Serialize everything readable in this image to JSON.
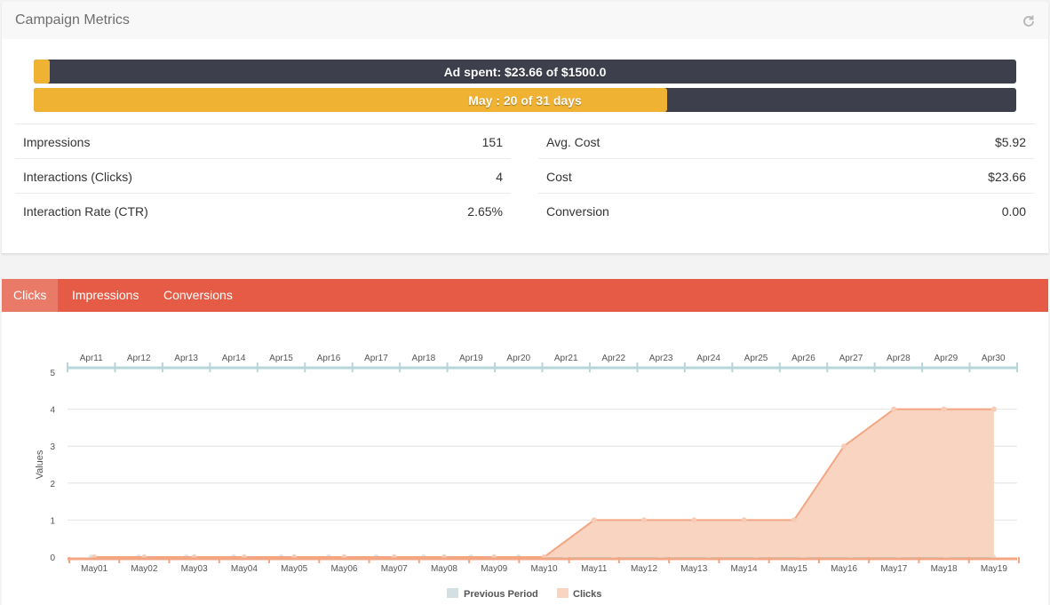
{
  "header": {
    "title": "Campaign Metrics",
    "refresh_icon": "refresh-icon"
  },
  "budget_bar": {
    "label": "Ad spent: $23.66 of $1500.0",
    "progress": 0.0158,
    "fill_color": "#f0b233",
    "track_color": "#3d3f4c"
  },
  "days_bar": {
    "label": "May : 20 of 31 days",
    "progress": 0.645
  },
  "stats_left": [
    {
      "label": "Impressions",
      "value": "151"
    },
    {
      "label": "Interactions (Clicks)",
      "value": "4"
    },
    {
      "label": "Interaction Rate (CTR)",
      "value": "2.65%"
    }
  ],
  "stats_right": [
    {
      "label": "Avg. Cost",
      "value": "$5.92"
    },
    {
      "label": "Cost",
      "value": "$23.66"
    },
    {
      "label": "Conversion",
      "value": "0.00"
    }
  ],
  "tabs": [
    {
      "label": "Clicks",
      "active": true
    },
    {
      "label": "Impressions",
      "active": false
    },
    {
      "label": "Conversions",
      "active": false
    }
  ],
  "colors": {
    "accent": "#e55b45",
    "clicks": "#f4a582",
    "previous": "#b7d6d9"
  },
  "chart_data": {
    "type": "area",
    "ylabel": "Values",
    "ylim": [
      0,
      5
    ],
    "yticks": [
      "0",
      "1",
      "2",
      "3",
      "4",
      "5"
    ],
    "x_bottom": [
      "May01",
      "May02",
      "May03",
      "May04",
      "May05",
      "May06",
      "May07",
      "May08",
      "May09",
      "May10",
      "May11",
      "May12",
      "May13",
      "May14",
      "May15",
      "May16",
      "May17",
      "May18",
      "May19"
    ],
    "x_top": [
      "Apr11",
      "Apr12",
      "Apr13",
      "Apr14",
      "Apr15",
      "Apr16",
      "Apr17",
      "Apr18",
      "Apr19",
      "Apr20",
      "Apr21",
      "Apr22",
      "Apr23",
      "Apr24",
      "Apr25",
      "Apr26",
      "Apr27",
      "Apr28",
      "Apr29",
      "Apr30"
    ],
    "series": [
      {
        "name": "Previous Period",
        "axis": "top",
        "values": [
          0,
          0,
          0,
          0,
          0,
          0,
          0,
          0,
          0,
          0,
          0,
          0,
          0,
          0,
          0,
          0,
          0,
          0,
          0,
          0
        ]
      },
      {
        "name": "Clicks",
        "axis": "bottom",
        "values": [
          0,
          0,
          0,
          0,
          0,
          0,
          0,
          0,
          0,
          0,
          1,
          1,
          1,
          1,
          1,
          3,
          4,
          4,
          4
        ]
      }
    ],
    "legend": [
      "Previous Period",
      "Clicks"
    ],
    "legend_position": "bottom-center",
    "grid": true
  }
}
